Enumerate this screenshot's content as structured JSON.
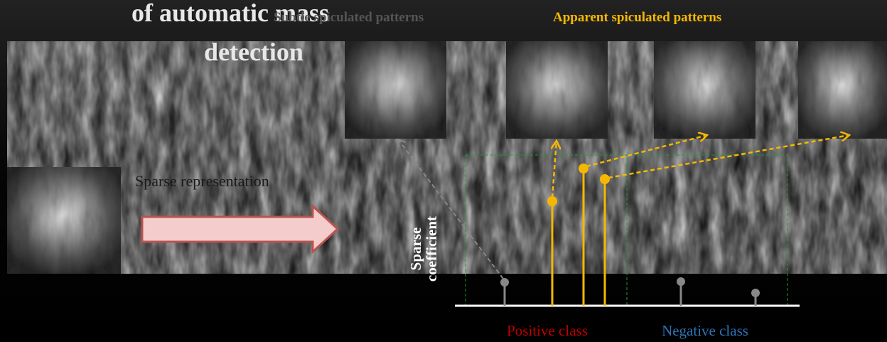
{
  "title": {
    "lines": [
      "of automatic mass",
      "detection"
    ]
  },
  "labels": {
    "subtle": "Subtle spiculated patterns",
    "apparent": "Apparent spiculated patterns",
    "representation": "Sparse representation"
  },
  "axis": {
    "y_label_lines": [
      "Sparse",
      "coefficient"
    ]
  },
  "classes": {
    "positive": "Positive class",
    "negative": "Negative class"
  }
}
